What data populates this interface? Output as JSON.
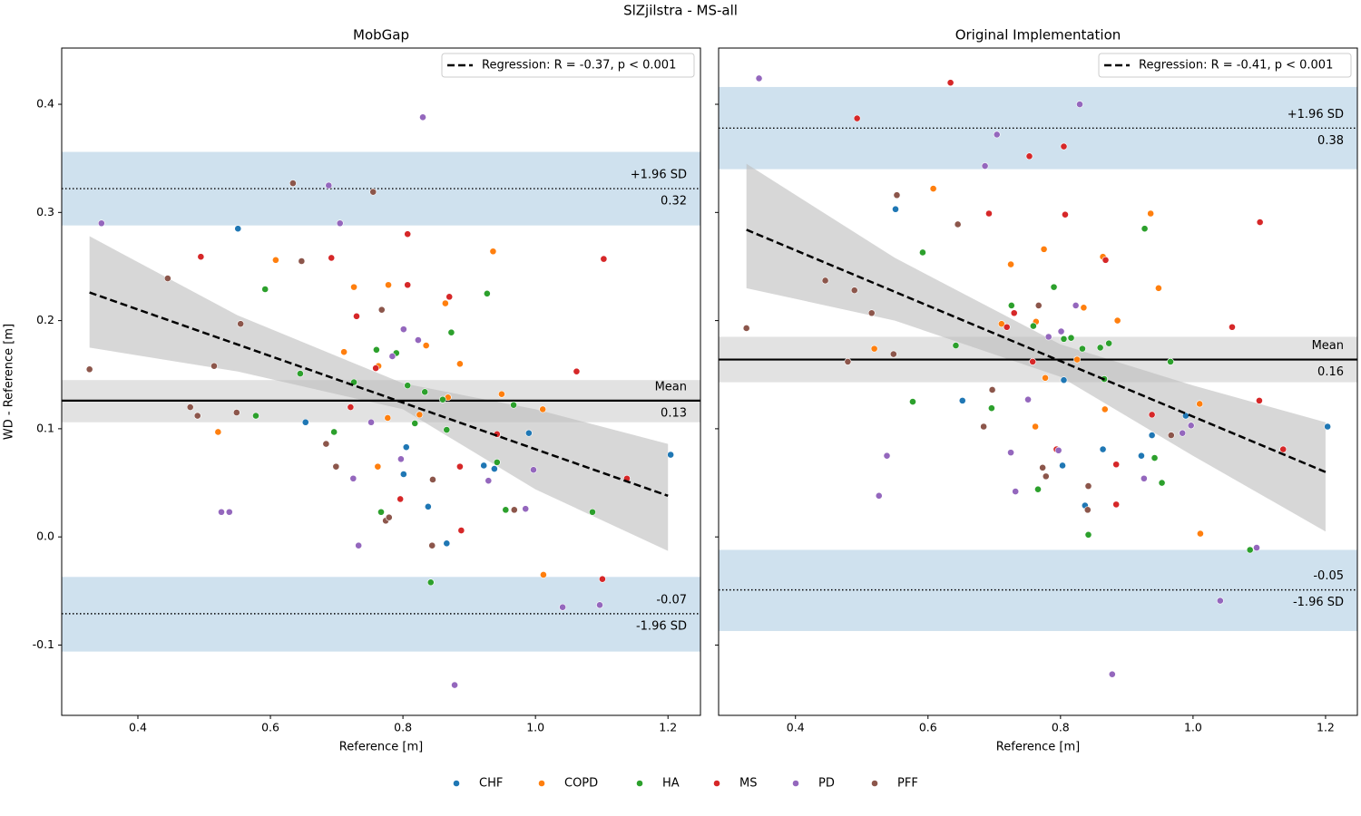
{
  "title": "SlZjilstra - MS-all",
  "chart_data": [
    {
      "type": "scatter",
      "title": "MobGap",
      "xlabel": "Reference [m]",
      "ylabel": "WD - Reference [m]",
      "xlim": [
        0.285,
        1.249
      ],
      "ylim": [
        -0.165,
        0.452
      ],
      "xticks": [
        0.4,
        0.6,
        0.8,
        {
          "value": 1,
          "label": "1.0"
        },
        1.2
      ],
      "yticks": [
        -0.1,
        {
          "value": 0,
          "label": "0.0"
        },
        0.1,
        0.2,
        0.3,
        0.4
      ],
      "mean": {
        "text": "Mean",
        "value": 0.126,
        "label": "0.13",
        "band": [
          0.106,
          0.145
        ],
        "color": "#000000"
      },
      "upper_loa": {
        "text": "+1.96 SD",
        "value": 0.322,
        "label": "0.32",
        "band": [
          0.288,
          0.356
        ]
      },
      "lower_loa": {
        "text": "-1.96 SD",
        "value": -0.071,
        "label": "-0.07",
        "band": [
          -0.106,
          -0.037
        ]
      },
      "regression": {
        "label": "Regression: R = -0.37, p < 0.001",
        "x": [
          0.327,
          1.2
        ],
        "values": [
          0.226,
          0.038
        ],
        "ci_x": [
          0.327,
          0.55,
          0.8,
          1.0,
          1.2
        ],
        "ci_upper": [
          0.278,
          0.205,
          0.142,
          0.118,
          0.086
        ],
        "ci_lower": [
          0.175,
          0.153,
          0.118,
          0.044,
          -0.013
        ]
      },
      "series": [
        {
          "name": "CHF",
          "color": "#1f77b4",
          "x": [
            0.551,
            0.653,
            0.805,
            0.801,
            0.838,
            0.866,
            0.922,
            0.938,
            0.99,
            1.204
          ],
          "values": [
            0.285,
            0.106,
            0.083,
            0.058,
            0.028,
            -0.006,
            0.066,
            0.063,
            0.096,
            0.076
          ]
        },
        {
          "name": "COPD",
          "color": "#ff7f0e",
          "x": [
            0.608,
            0.726,
            0.778,
            0.711,
            0.763,
            0.777,
            0.762,
            0.825,
            0.835,
            0.864,
            0.868,
            0.886,
            0.936,
            0.949,
            1.011,
            1.012,
            0.521
          ],
          "values": [
            0.256,
            0.231,
            0.233,
            0.171,
            0.158,
            0.11,
            0.065,
            0.113,
            0.177,
            0.216,
            0.129,
            0.16,
            0.264,
            0.132,
            0.118,
            -0.035,
            0.097
          ]
        },
        {
          "name": "HA",
          "color": "#2ca02c",
          "x": [
            0.592,
            0.645,
            0.578,
            0.696,
            0.726,
            0.76,
            0.79,
            0.807,
            0.818,
            0.833,
            0.86,
            0.873,
            0.866,
            0.927,
            0.942,
            0.967,
            0.955,
            0.767,
            0.842,
            1.086
          ],
          "values": [
            0.229,
            0.151,
            0.112,
            0.097,
            0.143,
            0.173,
            0.17,
            0.14,
            0.105,
            0.134,
            0.127,
            0.189,
            0.099,
            0.225,
            0.069,
            0.122,
            0.025,
            0.023,
            -0.042,
            0.023
          ]
        },
        {
          "name": "MS",
          "color": "#d62728",
          "x": [
            0.495,
            0.692,
            0.73,
            0.721,
            0.759,
            0.807,
            0.807,
            0.87,
            0.886,
            0.942,
            0.888,
            0.796,
            1.062,
            1.103,
            1.138,
            1.101
          ],
          "values": [
            0.259,
            0.258,
            0.204,
            0.12,
            0.156,
            0.28,
            0.233,
            0.222,
            0.065,
            0.095,
            0.006,
            0.035,
            0.153,
            0.257,
            0.054,
            -0.039
          ]
        },
        {
          "name": "PD",
          "color": "#9467bd",
          "x": [
            0.345,
            0.688,
            0.705,
            0.83,
            0.801,
            0.823,
            0.784,
            0.752,
            0.797,
            0.725,
            0.733,
            0.526,
            0.538,
            0.929,
            0.985,
            0.997,
            1.041,
            1.097,
            0.878
          ],
          "values": [
            0.29,
            0.325,
            0.29,
            0.388,
            0.192,
            0.182,
            0.167,
            0.106,
            0.072,
            0.054,
            -0.008,
            0.023,
            0.023,
            0.052,
            0.026,
            0.062,
            -0.065,
            -0.063,
            -0.137
          ]
        },
        {
          "name": "PFF",
          "color": "#8c564b",
          "x": [
            0.327,
            0.445,
            0.479,
            0.49,
            0.515,
            0.549,
            0.555,
            0.634,
            0.647,
            0.684,
            0.699,
            0.755,
            0.768,
            0.774,
            0.779,
            0.844,
            0.845,
            0.968
          ],
          "values": [
            0.155,
            0.239,
            0.12,
            0.112,
            0.158,
            0.115,
            0.197,
            0.327,
            0.255,
            0.086,
            0.065,
            0.319,
            0.21,
            0.015,
            0.018,
            -0.008,
            0.053,
            0.025
          ]
        }
      ]
    },
    {
      "type": "scatter",
      "title": "Original Implementation",
      "xlabel": "Reference [m]",
      "sharey": true,
      "xlim": [
        0.284,
        1.248
      ],
      "xticks": [
        0.4,
        0.6,
        0.8,
        {
          "value": 1,
          "label": "1.0"
        },
        1.2
      ],
      "mean": {
        "text": "Mean",
        "value": 0.164,
        "label": "0.16",
        "band": [
          0.143,
          0.185
        ],
        "color": "#000000"
      },
      "upper_loa": {
        "text": "+1.96 SD",
        "value": 0.378,
        "label": "0.38",
        "band": [
          0.34,
          0.416
        ]
      },
      "lower_loa": {
        "text": "-1.96 SD",
        "value": -0.049,
        "label": "-0.05",
        "band": [
          -0.087,
          -0.012
        ]
      },
      "regression": {
        "label": "Regression: R = -0.41, p < 0.001",
        "x": [
          0.326,
          1.2
        ],
        "values": [
          0.284,
          0.06
        ],
        "ci_x": [
          0.326,
          0.55,
          0.8,
          1.0,
          1.2
        ],
        "ci_upper": [
          0.345,
          0.258,
          0.178,
          0.14,
          0.106
        ],
        "ci_lower": [
          0.23,
          0.2,
          0.148,
          0.075,
          0.005
        ]
      },
      "series": [
        {
          "color": "#1f77b4",
          "x": [
            0.551,
            0.652,
            0.805,
            0.803,
            0.837,
            0.864,
            0.922,
            0.938,
            0.989,
            1.203
          ],
          "values": [
            0.303,
            0.126,
            0.145,
            0.066,
            0.029,
            0.081,
            0.075,
            0.094,
            0.112,
            0.102
          ]
        },
        {
          "color": "#ff7f0e",
          "x": [
            0.608,
            0.725,
            0.775,
            0.711,
            0.763,
            0.777,
            0.762,
            0.825,
            0.835,
            0.864,
            0.867,
            0.886,
            0.936,
            0.948,
            1.01,
            1.011,
            0.519
          ],
          "values": [
            0.322,
            0.252,
            0.266,
            0.197,
            0.199,
            0.147,
            0.102,
            0.164,
            0.212,
            0.259,
            0.118,
            0.2,
            0.299,
            0.23,
            0.123,
            0.003,
            0.174
          ]
        },
        {
          "color": "#2ca02c",
          "x": [
            0.592,
            0.642,
            0.577,
            0.696,
            0.726,
            0.759,
            0.79,
            0.805,
            0.816,
            0.833,
            0.86,
            0.873,
            0.866,
            0.927,
            0.942,
            0.966,
            0.953,
            0.766,
            0.842,
            1.086
          ],
          "values": [
            0.263,
            0.177,
            0.125,
            0.119,
            0.214,
            0.195,
            0.231,
            0.183,
            0.184,
            0.174,
            0.175,
            0.179,
            0.146,
            0.285,
            0.073,
            0.162,
            0.05,
            0.044,
            0.002,
            -0.012
          ]
        },
        {
          "color": "#d62728",
          "x": [
            0.634,
            0.493,
            0.692,
            0.73,
            0.719,
            0.758,
            0.807,
            0.805,
            0.753,
            0.868,
            0.884,
            0.938,
            0.884,
            0.794,
            1.059,
            1.101,
            1.136,
            1.1
          ],
          "values": [
            0.42,
            0.387,
            0.299,
            0.207,
            0.194,
            0.162,
            0.298,
            0.361,
            0.352,
            0.256,
            0.067,
            0.113,
            0.03,
            0.081,
            0.194,
            0.291,
            0.081,
            0.126
          ]
        },
        {
          "color": "#9467bd",
          "x": [
            0.345,
            0.686,
            0.704,
            0.829,
            0.801,
            0.823,
            0.782,
            0.751,
            0.797,
            0.725,
            0.732,
            0.526,
            0.538,
            0.926,
            0.984,
            0.997,
            1.041,
            1.096,
            0.878
          ],
          "values": [
            0.424,
            0.343,
            0.372,
            0.4,
            0.19,
            0.214,
            0.185,
            0.127,
            0.08,
            0.078,
            0.042,
            0.038,
            0.075,
            0.054,
            0.096,
            0.103,
            -0.059,
            -0.01,
            -0.127
          ]
        },
        {
          "color": "#8c564b",
          "x": [
            0.326,
            0.445,
            0.479,
            0.489,
            0.515,
            0.548,
            0.553,
            0.645,
            0.684,
            0.697,
            0.773,
            0.778,
            0.767,
            0.842,
            0.841,
            0.967
          ],
          "values": [
            0.193,
            0.237,
            0.162,
            0.228,
            0.207,
            0.169,
            0.316,
            0.289,
            0.102,
            0.136,
            0.064,
            0.056,
            0.214,
            0.047,
            0.025,
            0.094
          ]
        }
      ]
    }
  ]
}
